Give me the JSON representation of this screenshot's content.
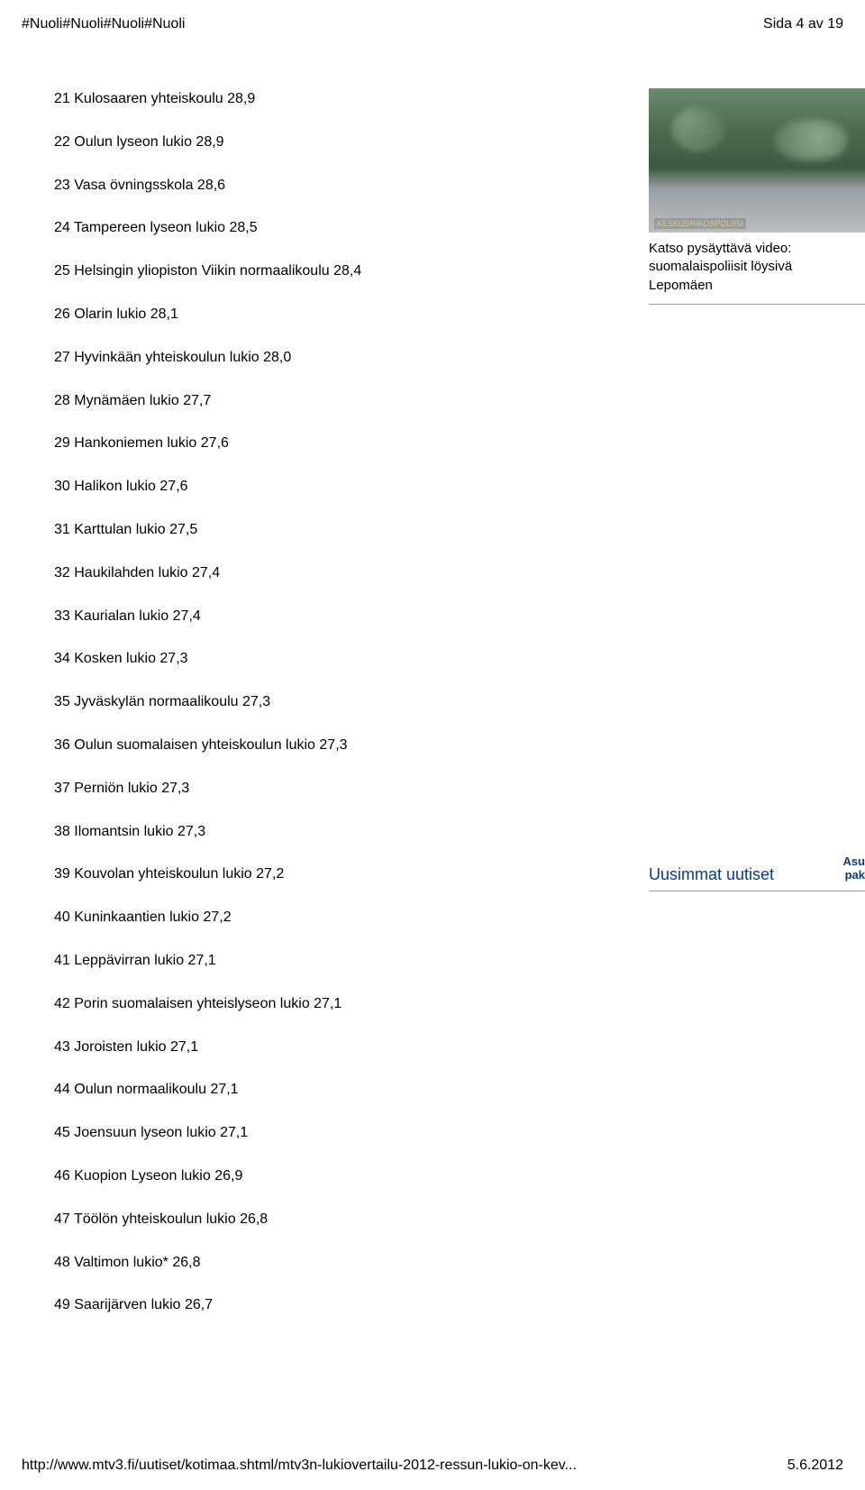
{
  "header": {
    "left": "#Nuoli#Nuoli#Nuoli#Nuoli",
    "right": "Sida 4 av 19"
  },
  "list": {
    "items": [
      "21 Kulosaaren yhteiskoulu 28,9",
      "22 Oulun lyseon lukio 28,9",
      "23 Vasa övningsskola 28,6",
      "24 Tampereen lyseon lukio 28,5",
      "25 Helsingin yliopiston Viikin normaalikoulu 28,4",
      "26 Olarin lukio 28,1",
      "27 Hyvinkään yhteiskoulun lukio 28,0",
      "28 Mynämäen lukio 27,7",
      "29 Hankoniemen lukio 27,6",
      "30 Halikon lukio 27,6",
      "31 Karttulan lukio 27,5",
      "32 Haukilahden lukio 27,4",
      "33 Kaurialan lukio 27,4",
      "34 Kosken lukio 27,3",
      "35 Jyväskylän normaalikoulu 27,3",
      "36 Oulun suomalaisen yhteiskoulun lukio 27,3",
      "37 Perniön lukio 27,3",
      "38 Ilomantsin lukio 27,3",
      "39 Kouvolan yhteiskoulun lukio 27,2",
      "40 Kuninkaantien lukio 27,2",
      "41 Leppävirran lukio 27,1",
      "42 Porin suomalaisen yhteislyseon lukio 27,1",
      "43 Joroisten lukio 27,1",
      "44 Oulun normaalikoulu 27,1",
      "45 Joensuun lyseon lukio 27,1",
      "46 Kuopion Lyseon lukio 26,9",
      "47 Töölön yhteiskoulun lukio 26,8",
      "48 Valtimon lukio* 26,8",
      "49 Saarijärven lukio 26,7"
    ]
  },
  "video": {
    "thumb_label": "KESKUSRIKOSPOLIISI",
    "line1": "Katso pysäyttävä video:",
    "line2": "suomalaispoliisit löysivä",
    "line3": "Lepomäen"
  },
  "latest": {
    "heading": "Uusimmat uutiset",
    "right_top": "Asu",
    "right_bot": "pak"
  },
  "footer": {
    "url": "http://www.mtv3.fi/uutiset/kotimaa.shtml/mtv3n-lukiovertailu-2012-ressun-lukio-on-kev...",
    "date": "5.6.2012"
  },
  "colors": {
    "text": "#000000",
    "link": "#0a3a8a",
    "rule": "#999999",
    "bg": "#ffffff"
  }
}
